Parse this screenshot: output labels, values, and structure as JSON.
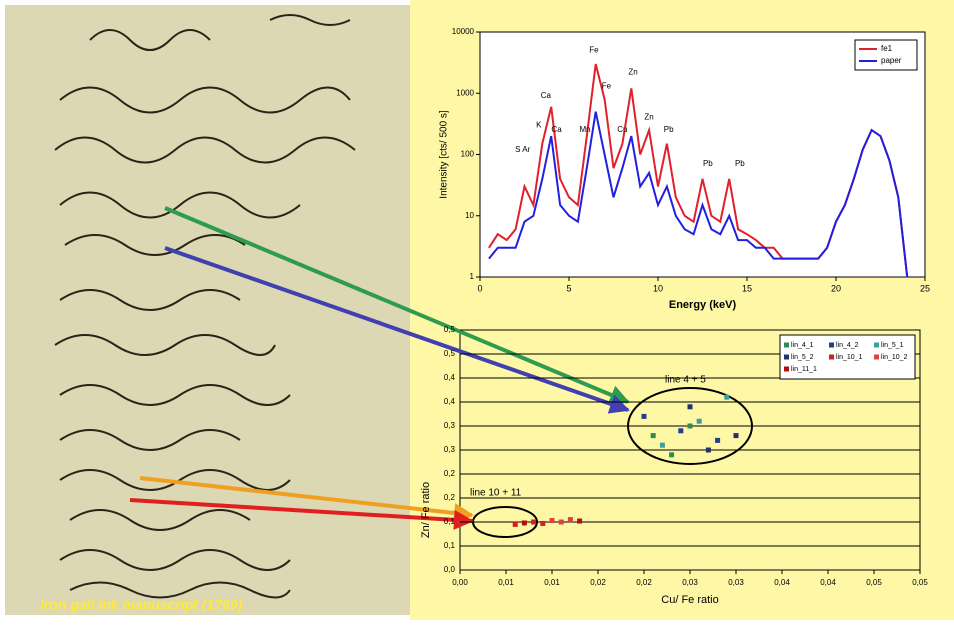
{
  "caption": "Iron gall ink manuscript (1769)",
  "chart_data": [
    {
      "type": "line",
      "log_y": true,
      "x_label": "Energy (keV)",
      "y_label": "Intensity [cts/ 500 s]",
      "xlim": [
        0,
        25
      ],
      "xticks": [
        0,
        5,
        10,
        15,
        20,
        25
      ],
      "ylim": [
        1,
        10000
      ],
      "yticks": [
        1,
        10,
        100,
        1000,
        10000
      ],
      "legend": "top-right",
      "annotations": [
        "S Ar",
        "K",
        "Ca",
        "Ca",
        "Mn",
        "Fe",
        "Fe",
        "Cu",
        "Zn",
        "Zn",
        "Pb",
        "Pb",
        "Pb"
      ],
      "x": [
        0.5,
        1,
        1.5,
        2,
        2.5,
        3,
        3.5,
        4,
        4.5,
        5,
        5.5,
        6,
        6.5,
        7,
        7.5,
        8,
        8.5,
        9,
        9.5,
        10,
        10.5,
        11,
        11.5,
        12,
        12.5,
        13,
        13.5,
        14,
        14.5,
        15,
        15.5,
        16,
        16.5,
        17,
        17.5,
        18,
        18.5,
        19,
        19.5,
        20,
        20.5,
        21,
        21.5,
        22,
        22.5,
        23,
        23.5,
        24
      ],
      "series": [
        {
          "name": "fe1",
          "color": "#e0202a",
          "values": [
            3,
            5,
            4,
            6,
            30,
            15,
            150,
            600,
            40,
            20,
            15,
            200,
            3000,
            800,
            60,
            150,
            1200,
            100,
            250,
            30,
            150,
            20,
            10,
            8,
            40,
            10,
            8,
            40,
            6,
            5,
            4,
            3,
            3,
            2,
            2,
            2,
            2,
            2,
            3,
            8,
            15,
            40,
            120,
            250,
            200,
            80,
            20,
            1
          ]
        },
        {
          "name": "paper",
          "color": "#2020e0",
          "values": [
            2,
            3,
            3,
            3,
            8,
            10,
            40,
            200,
            15,
            10,
            8,
            60,
            500,
            100,
            20,
            60,
            200,
            30,
            50,
            15,
            30,
            10,
            6,
            5,
            15,
            6,
            5,
            10,
            4,
            4,
            3,
            3,
            2,
            2,
            2,
            2,
            2,
            2,
            3,
            8,
            15,
            40,
            120,
            250,
            200,
            80,
            20,
            1
          ]
        }
      ]
    },
    {
      "type": "scatter",
      "x_label": "Cu/ Fe ratio",
      "y_label": "Zn/ Fe ratio",
      "xlim": [
        0,
        0.05
      ],
      "xticks": [
        {
          "value": 0,
          "label": "0,00"
        },
        {
          "value": 0.005,
          "label": "0,01"
        },
        {
          "value": 0.01,
          "label": "0,01"
        },
        {
          "value": 0.015,
          "label": "0,02"
        },
        {
          "value": 0.02,
          "label": "0,02"
        },
        {
          "value": 0.025,
          "label": "0,03"
        },
        {
          "value": 0.03,
          "label": "0,03"
        },
        {
          "value": 0.035,
          "label": "0,04"
        },
        {
          "value": 0.04,
          "label": "0,04"
        },
        {
          "value": 0.045,
          "label": "0,05"
        },
        {
          "value": 0.05,
          "label": "0,05"
        }
      ],
      "ylim": [
        0,
        0.5
      ],
      "yticks": [
        {
          "value": 0,
          "label": "0,0"
        },
        {
          "value": 0.05,
          "label": "0,1"
        },
        {
          "value": 0.1,
          "label": "0,1"
        },
        {
          "value": 0.15,
          "label": "0,2"
        },
        {
          "value": 0.2,
          "label": "0,2"
        },
        {
          "value": 0.25,
          "label": "0,3"
        },
        {
          "value": 0.3,
          "label": "0,3"
        },
        {
          "value": 0.35,
          "label": "0,4"
        },
        {
          "value": 0.4,
          "label": "0,4"
        },
        {
          "value": 0.45,
          "label": "0,5"
        },
        {
          "value": 0.5,
          "label": "0,5"
        }
      ],
      "grid": true,
      "legend": "top-right",
      "annotations": [
        "line 4 + 5",
        "line 10 + 11"
      ],
      "series": [
        {
          "name": "lin_4_1",
          "color": "#2e8b57",
          "x": [
            0.021,
            0.023,
            0.025
          ],
          "values": [
            0.28,
            0.24,
            0.3
          ]
        },
        {
          "name": "lin_4_2",
          "color": "#1f3f8f",
          "x": [
            0.02,
            0.024,
            0.028
          ],
          "values": [
            0.32,
            0.29,
            0.27
          ]
        },
        {
          "name": "lin_5_1",
          "color": "#3aa0a0",
          "x": [
            0.022,
            0.026,
            0.029
          ],
          "values": [
            0.26,
            0.31,
            0.36
          ]
        },
        {
          "name": "lin_5_2",
          "color": "#23306a",
          "x": [
            0.025,
            0.027,
            0.03
          ],
          "values": [
            0.34,
            0.25,
            0.28
          ]
        },
        {
          "name": "lin_10_1",
          "color": "#d02020",
          "x": [
            0.006,
            0.008,
            0.009
          ],
          "values": [
            0.095,
            0.1,
            0.097
          ]
        },
        {
          "name": "lin_10_2",
          "color": "#e04040",
          "x": [
            0.01,
            0.011,
            0.012
          ],
          "values": [
            0.103,
            0.1,
            0.105
          ]
        },
        {
          "name": "lin_11_1",
          "color": "#b01010",
          "x": [
            0.013,
            0.007
          ],
          "values": [
            0.102,
            0.098
          ]
        }
      ]
    }
  ]
}
